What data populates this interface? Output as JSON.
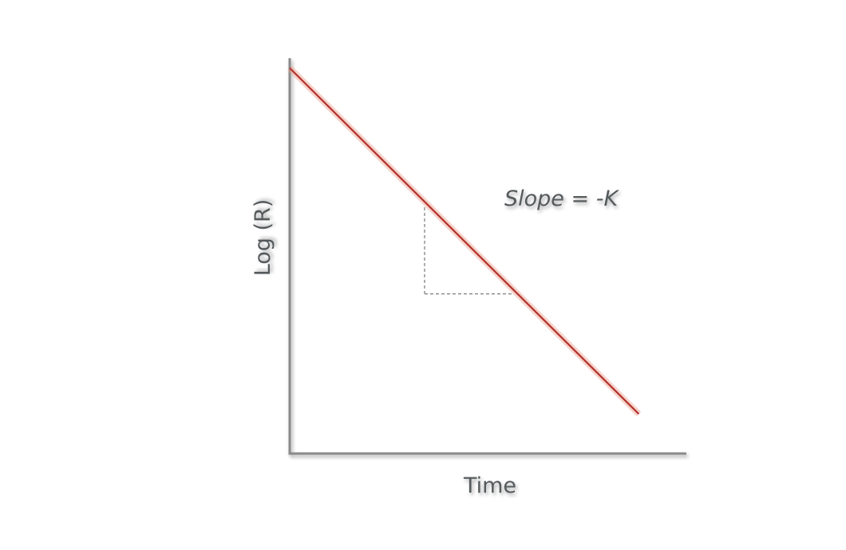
{
  "chart_data": {
    "type": "line",
    "title": "",
    "xlabel": "Time",
    "ylabel": "Log (R)",
    "annotation": "Slope = -K",
    "x_ticks": [],
    "y_ticks": [],
    "grid": false,
    "legend": "none",
    "xlim": [
      0,
      10
    ],
    "ylim": [
      0,
      10
    ],
    "series": [
      {
        "points": [
          [
            0,
            9.75
          ],
          [
            8.8,
            1.0
          ]
        ],
        "color": "#b3302d"
      }
    ],
    "slope_guide": {
      "x_start": 3.4,
      "x_end": 5.6,
      "y_top": 6.23,
      "y_bottom": 4.04
    }
  },
  "colors": {
    "axis": "#8a8a8a",
    "line": "#b3302d",
    "text": "#555a5c",
    "guide": "#8c8c8c"
  }
}
